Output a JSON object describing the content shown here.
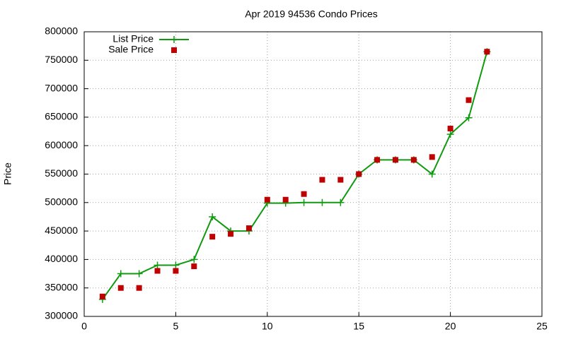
{
  "chart_data": {
    "type": "line",
    "title": "Apr 2019 94536 Condo Prices",
    "y_label": "Price",
    "x": [
      1,
      2,
      3,
      4,
      5,
      6,
      7,
      8,
      9,
      10,
      11,
      12,
      13,
      14,
      15,
      16,
      17,
      18,
      19,
      20,
      21,
      22
    ],
    "series": [
      {
        "name": "List Price",
        "color": "#109a10",
        "style": "linespoints",
        "values": [
          330000,
          375000,
          375000,
          390000,
          390000,
          400000,
          475000,
          450000,
          450000,
          499000,
          499000,
          500000,
          500000,
          500000,
          550000,
          575000,
          575000,
          575000,
          550000,
          620000,
          649000,
          765000
        ]
      },
      {
        "name": "Sale Price",
        "color": "#c00000",
        "style": "points",
        "values": [
          335000,
          350000,
          350000,
          380000,
          380000,
          388000,
          440000,
          445000,
          455000,
          505000,
          505000,
          515000,
          540000,
          540000,
          550000,
          575000,
          575000,
          575000,
          580000,
          630000,
          680000,
          765000
        ]
      }
    ],
    "xlim": [
      0,
      25
    ],
    "xticks": [
      0,
      5,
      10,
      15,
      20,
      25
    ],
    "ylim": [
      300000,
      800000
    ],
    "yticks": [
      300000,
      350000,
      400000,
      450000,
      500000,
      550000,
      600000,
      650000,
      700000,
      750000,
      800000
    ],
    "grid": true,
    "legend": "top-left"
  }
}
